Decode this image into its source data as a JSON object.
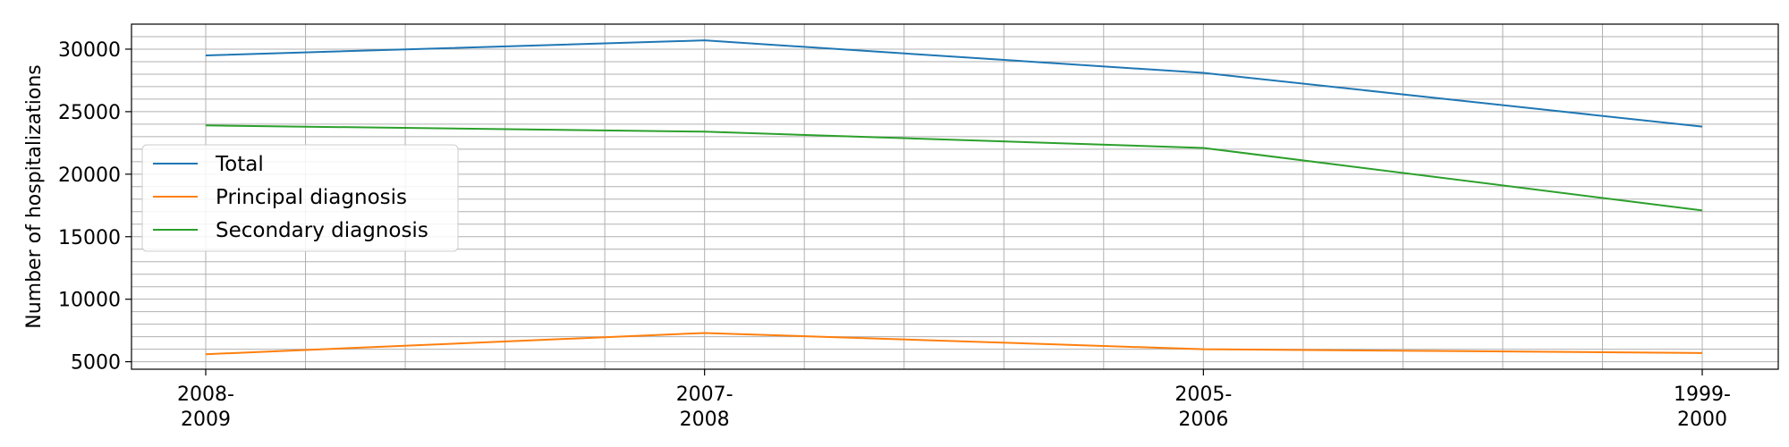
{
  "chart_data": {
    "type": "line",
    "categories": [
      "2008-2009",
      "2007-2008",
      "2005-2006",
      "1999-2000"
    ],
    "category_labels": [
      [
        "2008-",
        "2009"
      ],
      [
        "2007-",
        "2008"
      ],
      [
        "2005-",
        "2006"
      ],
      [
        "1999-",
        "2000"
      ]
    ],
    "series": [
      {
        "name": "Total",
        "values": [
          29500,
          30700,
          28100,
          23800
        ],
        "color": "#1f77b4"
      },
      {
        "name": "Principal diagnosis",
        "values": [
          5600,
          7300,
          6000,
          5700
        ],
        "color": "#ff7f0e"
      },
      {
        "name": "Secondary diagnosis",
        "values": [
          23900,
          23400,
          22100,
          17100
        ],
        "color": "#2ca02c"
      }
    ],
    "title": "",
    "xlabel": "",
    "ylabel": "Number of hospitalizations",
    "ylim": [
      4400,
      32000
    ],
    "yticks": [
      5000,
      10000,
      15000,
      20000,
      25000,
      30000
    ],
    "grid": true,
    "legend_position": "center-left"
  }
}
